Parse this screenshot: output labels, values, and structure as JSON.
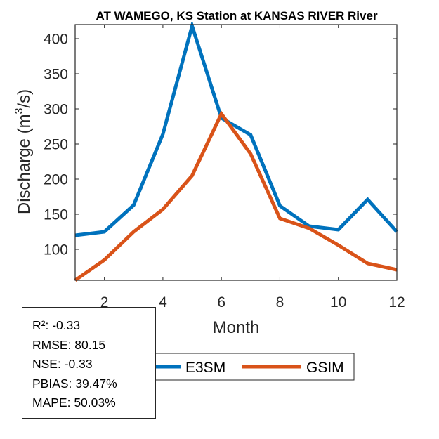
{
  "chart_data": {
    "type": "line",
    "title": "AT WAMEGO, KS  Station at  KANSAS RIVER  River",
    "xlabel": "Month",
    "ylabel_main": "Discharge (m",
    "ylabel_sup": "3",
    "ylabel_tail": "/s)",
    "x": [
      1,
      2,
      3,
      4,
      5,
      6,
      7,
      8,
      9,
      10,
      11,
      12
    ],
    "xlim": [
      1,
      12
    ],
    "ylim": [
      56,
      420
    ],
    "xticks": [
      2,
      4,
      6,
      8,
      10,
      12
    ],
    "yticks": [
      100,
      150,
      200,
      250,
      300,
      350,
      400
    ],
    "grid": false,
    "legend_position": "bottom-center",
    "series": [
      {
        "name": "E3SM",
        "color": "#0072BD",
        "values": [
          120,
          125,
          163,
          264,
          418,
          287,
          263,
          162,
          133,
          128,
          171,
          125
        ]
      },
      {
        "name": "GSIM",
        "color": "#D95319",
        "values": [
          56,
          85,
          125,
          157,
          205,
          293,
          236,
          144,
          130,
          106,
          80,
          71
        ]
      }
    ]
  },
  "stats": {
    "lines": [
      "R²: -0.33",
      "RMSE: 80.15",
      "NSE: -0.33",
      "PBIAS: 39.47%",
      "MAPE: 50.03%"
    ]
  }
}
